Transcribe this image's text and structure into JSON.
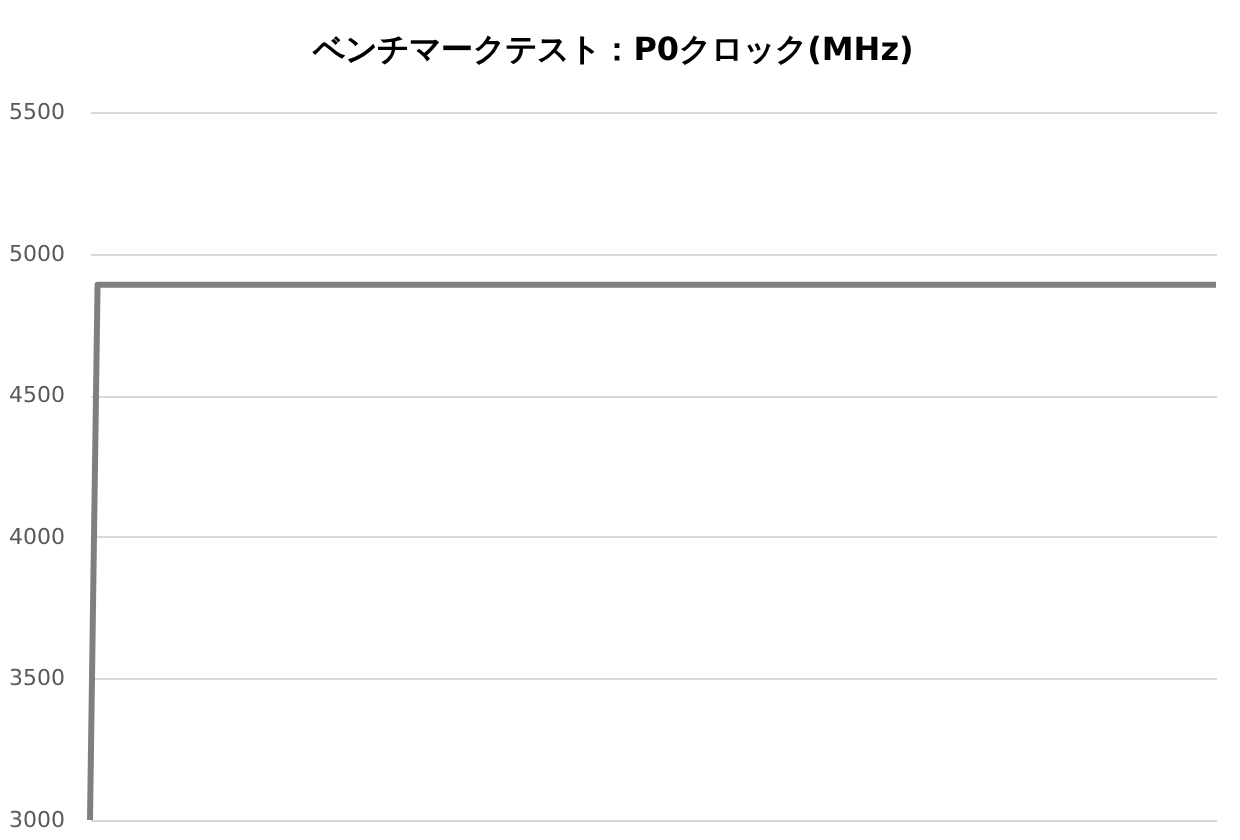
{
  "chart_data": {
    "type": "line",
    "title": "ベンチマークテスト：P0クロック(MHz)",
    "categories": [
      null,
      null,
      null,
      null,
      null,
      null,
      null,
      null,
      null,
      null,
      null,
      null,
      null,
      null,
      null,
      null,
      null,
      null,
      null,
      null,
      null,
      null,
      null,
      null,
      null,
      null,
      null,
      null,
      null,
      null,
      null,
      null,
      null,
      null,
      null,
      null,
      null,
      null,
      null,
      null,
      null,
      null,
      null,
      null,
      null,
      null,
      null,
      null,
      null,
      null,
      null,
      null,
      null,
      null,
      null,
      null,
      null,
      null,
      null,
      null,
      null,
      null,
      null,
      null,
      null,
      null,
      null,
      null,
      null,
      null,
      null,
      null,
      null,
      null,
      null,
      null,
      null,
      null,
      null,
      null,
      null,
      null,
      null,
      null,
      null,
      null,
      null,
      null,
      null,
      null,
      null,
      null,
      null,
      null,
      null,
      null,
      null,
      null,
      null,
      null,
      null,
      null,
      null,
      null,
      null,
      null,
      null,
      null,
      null,
      null,
      null,
      null,
      null,
      null,
      null,
      null,
      null,
      null,
      null,
      null,
      null,
      null,
      null,
      null,
      null,
      null,
      null,
      null,
      null,
      null,
      null,
      null,
      null,
      null,
      null,
      null,
      null,
      null,
      null,
      null,
      null,
      null,
      null,
      null,
      null,
      null,
      null,
      null,
      null,
      null
    ],
    "series": [
      {
        "color": "#7f7f7f",
        "values": [
          3000,
          4890,
          4890,
          4890,
          4890,
          4890,
          4890,
          4890,
          4890,
          4890,
          4890,
          4890,
          4890,
          4890,
          4890,
          4890,
          4890,
          4890,
          4890,
          4890,
          4890,
          4890,
          4890,
          4890,
          4890,
          4890,
          4890,
          4890,
          4890,
          4890,
          4890,
          4890,
          4890,
          4890,
          4890,
          4890,
          4890,
          4890,
          4890,
          4890,
          4890,
          4890,
          4890,
          4890,
          4890,
          4890,
          4890,
          4890,
          4890,
          4890,
          4890,
          4890,
          4890,
          4890,
          4890,
          4890,
          4890,
          4890,
          4890,
          4890,
          4890,
          4890,
          4890,
          4890,
          4890,
          4890,
          4890,
          4890,
          4890,
          4890,
          4890,
          4890,
          4890,
          4890,
          4890,
          4890,
          4890,
          4890,
          4890,
          4890,
          4890,
          4890,
          4890,
          4890,
          4890,
          4890,
          4890,
          4890,
          4890,
          4890,
          4890,
          4890,
          4890,
          4890,
          4890,
          4890,
          4890,
          4890,
          4890,
          4890,
          4890,
          4890,
          4890,
          4890,
          4890,
          4890,
          4890,
          4890,
          4890,
          4890,
          4890,
          4890,
          4890,
          4890,
          4890,
          4890,
          4890,
          4890,
          4890,
          4890,
          4890,
          4890,
          4890,
          4890,
          4890,
          4890,
          4890,
          4890,
          4890,
          4890,
          4890,
          4890,
          4890,
          4890,
          4890,
          4890,
          4890,
          4890,
          4890,
          4890,
          4890,
          4890,
          4890,
          4890,
          4890,
          4890,
          4890,
          4890,
          4890,
          4890
        ]
      }
    ],
    "ylim": [
      3000,
      5500
    ],
    "yticks": [
      3000,
      3500,
      4000,
      4500,
      5000,
      5500
    ],
    "grid": "y",
    "tick_labels": "y"
  }
}
